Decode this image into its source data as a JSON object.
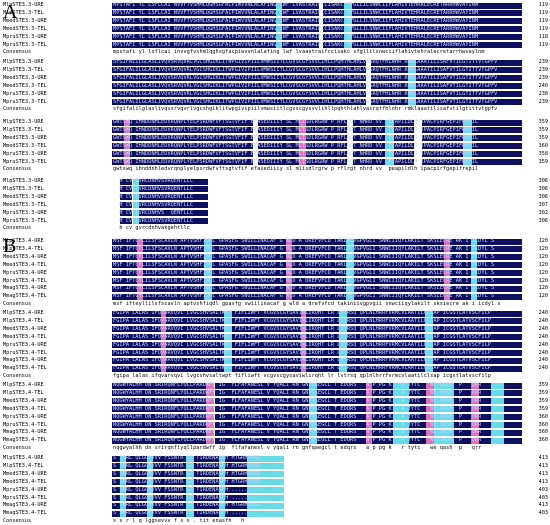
{
  "panels": [
    {
      "letter": "A",
      "blocks": [
        {
          "rows": [
            {
              "name": "MlpSTE3.3-URE",
              "end": "119",
              "seq": "MPSTAFI YL LSFLCAI NVVFTVSHMLQGHSGFACPIWVVNLALAFING LWF LVASTRAIFCCISAKC SFGLLILSNWCIIFLAHIVTEHRALECRETARRHWVAYINM"
            },
            {
              "name": "MlpSTE3.3-TEL",
              "end": "119",
              "seq": "MPSTAFI YL LSFLCAI NVVFTVSHMLQGHSGFACPIWVVNLALAFING LWF LVASTRAIFCCISAKC SFGLLILSNWCIIFLAHIVTEHRALECRETARRHWVAYINM"
            },
            {
              "name": "MmedSTE3.3-URE",
              "end": "119",
              "seq": "MPSTAFI YL LSFLCAI NVVFTVSHMLQGHSGFACPIWVVNLALAFING LWF LVASTRAIFCCISAKC SFGLLILSNWCIIFLAHIVTEHRALECRETARRHWVAYINM"
            },
            {
              "name": "MmedSTE3.3-TEL",
              "end": "119",
              "seq": "MPSTAFI YL LSFLCAI NVVFTVSHMLQGHSGFACPIWVVNLALAFING LWF LVASTRAIFCCISAKC SFGLLILSNWCIIFLAHIVTEHRALECRETARRHWVAYINM"
            },
            {
              "name": "MpruSTE3.3-URE",
              "end": "118",
              "seq": "MPSTAFI YL LSFLCAI NVVFTVSHMLQGHSGFACPIWVVNLALAFING LWF LVASTRAIFCCISAKC SFGLLILSNWCIIFLAHIVTEHRALECRETARRHWVAYINM"
            },
            {
              "name": "MpruSTE3.3-TEL",
              "end": "119",
              "seq": "MPSTAFI YL LSFLCAI NVVFTVSHMLQGHSGFACPIWVVNLALAFING LWF LVASTRAIFCCISAKC SFGLLILSNWCIIFLAHIVTEHRALECRETARRHWVAYINM"
            }
          ],
          "consensus": {
            "name": "Consensus",
            "seq": "mpstafi yl lsflcai invvgfvshmlqghsgfacpiwvvnlalafing lwf lvaastraifccisakc sfgllilsnwciiflahivtehralecretarrhwvaylnm"
          }
        },
        {
          "rows": [
            {
              "name": "MlpSTE3.3-URE",
              "end": "239",
              "seq": "SFGIFALILGLASLIVQVSRVQVRLVGCSHGIKLITWPGIVIPIILVMWSIITLCGVSCGYSVVLIHLLPQHTHLAHLVASRQTFHLNHR RMKLAAATILISAFVTILGTITTVTGPFV"
            },
            {
              "name": "MlpSTE3.3-TEL",
              "end": "239",
              "seq": "SFGIFALILGLASLIVQVSRVQVRLVGCSHGIKLITWPGIVIPIILVMWSIITLCGVSCGYSVVLIHLLPQHTHLAHLVASRQTFHLNHR RMKLAAATILISAFVTILGTITTVTGPFV"
            },
            {
              "name": "MmedSTE3.3-URE",
              "end": "239",
              "seq": "SFGIFALILGLASLIVQVSRVQVRLVGCSHGIKLITWPGIVIPIILVMWSIITLCGVSCGYSVVLIHLLPQHTHLAHLVASRQTFHLNHR RMKLAAATILISAFVTILGTITTVTGPFV"
            },
            {
              "name": "MmedSTE3.3-TEL",
              "end": "240",
              "seq": "SFGIFALILGLASLIVQVSRVQVRLVGCSHGIKLITWPGIVIPIILVMWSIITLCGVSCGYSVVLIHLLPQHTHLAHLVASRQTFHLNHR RMKLAAATILISAFVTILGTITTVTGPFV"
            },
            {
              "name": "MpruSTE3.3-URE",
              "end": "238",
              "seq": "SFGIFALILGLASLIVQVSRVQVRLVGCSHGIKLITWPGIVIPIILVMWSIITLCGVSCGYSVVLIHLLPQHTHLAHLVASRQTFHLNHR RMKLAAATILISAFVTILGTITTVTGPFV"
            },
            {
              "name": "MpruSTE3.3-TEL",
              "end": "239",
              "seq": "SFGIFALILGLASLIVQVSRVQVRLVGCSHGIKLITWPGIVIPIILVMWSIITLCGVSCGYSVVLIHLLPQHTHLAHLVASRQTFHLNHR RMKLAAATILISAFVTILGTITTVTGPFV"
            }
          ],
          "consensus": {
            "name": "Consensus",
            "seq": "sfgifalilglaslivqvsrvqvrlvgcshgiklitwpgivipiilvmwsiitlcgvscgysvvlihllpqhthlahlvasrqtfhlnhr rmklaaatilisafvtilgtittvtgpfv"
          }
        },
        {
          "rows": [
            {
              "name": "MlpSTE3.3-URE",
              "end": "359",
              "seq": "GWTSWQ IHNDDNHLEDVRQNPLYELPSRDWFVFTSGTVFIF EFASEDIIIY SL MLISDLRGRW P RFLRGT NHRD VV  PEAPILDLH IPACPIRFGEPIFREPIL"
            },
            {
              "name": "MlpSTE3.3-TEL",
              "end": "359",
              "seq": "GWTSWQ IHNDDNHLEDVRQNPLYELPSRDWFVFTSGTVFIF EFASEDIIIY SL MLISDLRGRW P RFLRGT NHRD VV  PEAPILDLH IPACPIRFGEPIFREPIL"
            },
            {
              "name": "MmedSTE3.3-URE",
              "end": "359",
              "seq": "GWTSWQ IHNDDNHLEDVRQNPLYELPSRDWFVFTSGTVFIF EFASEDIIIY SL MLISDLRGRW P RFLRGT NHRD VV  PEAPILDLH IPACPIRFGEPIFREPIL"
            },
            {
              "name": "MmedSTE3.3-TEL",
              "end": "360",
              "seq": "GWTSWQ IHNDDNHLEDVRQNPLYELPSRDWFVFTSGTVFIF EFASEDIIIY SL MLISDLRGRW P RFLRGT NHRD VV  PEAPILDLH IPACPIRFGEPIFREPIL"
            },
            {
              "name": "MpruSTE3.3-URE",
              "end": "358",
              "seq": "GWTSWQ IHNDDNHLEDVRQNPLYELPSRDWFVFTSGTVFIF EFASEDIIIY SL MLISDLRGRW P RFLRGT NHRD VV  PEAPILDLH IPACPIRFGEPIFREPIL"
            },
            {
              "name": "MpruSTE3.3-TEL",
              "end": "359",
              "seq": "GWTSWQ IHNDDNHLEDVRQNPLYELPSRDWFVFTSGTVFIF EFASEDIIIY SL MLISDLRGRW P RFLRGT NHRD VV  PEAPILDLH IPACPIRFGEPIFREPIL"
            }
          ],
          "consensus": {
            "name": "Consensus",
            "seq": "gwtswq ihnddnhledvrqnplyelpsrdwfvftsgtvfif efasediiiy sl mlisdlrgrw p rflrgt nhrd vv  peapildlh ipacpirfgepifrepil"
          }
        },
        {
          "rows": [
            {
              "name": "MlpSTE3.3-URE",
              "end": "306",
              "seq": "  H CV GVRCDNHVSVRQENTLLC"
            },
            {
              "name": "MlpSTE3.3-TEL",
              "end": "306",
              "seq": "  H CV GVRCDNHVSVRQENTLLC"
            },
            {
              "name": "MmedSTE3.3-URE",
              "end": "306",
              "seq": "  H CV GVRCDNHVSVRQENTLLC"
            },
            {
              "name": "MmedSTE3.3-TEL",
              "end": "307",
              "seq": "  H CV GVRCDNHVSVRQENTLLC"
            },
            {
              "name": "MpruSTE3.3-URE",
              "end": "302",
              "seq": "  H CV GVRCDNHVS  QENTLLC"
            },
            {
              "name": "MpruSTE3.3-TEL",
              "end": "306",
              "seq": "  H CV GVRCDNHVSVRQENTLLC"
            }
          ],
          "consensus": {
            "name": "Consensus",
            "seq": "  h cv gvrcdnhvakgehtllc"
          }
        }
      ]
    },
    {
      "letter": "B",
      "blocks": [
        {
          "rows": [
            {
              "name": "MlpSTE3.4-URE",
              "end": "120",
              "seq": "MSF IFTCYLILSFSCAVLN APTVSHFIQDL GPASFG SWILLINACAF G WLD A DREFVFCD TAKLNLVGPVGLI SNWCIIQYLAKILT SKSLECRE AK I ICDYL S"
            },
            {
              "name": "MlpSTE3.4-TEL",
              "end": "120",
              "seq": "MSF IFTCYLILSFSCAVLN APTVSHFIQDL GPASFG SWILLINACAF G WLD A DREFVFCD TAKLNLVGPVGLI SNWCIIQYLAKILT SKSLECRE AK I ICDYL S"
            },
            {
              "name": "MmedSTE3.4-URE",
              "end": "120",
              "seq": "MSF IFTCYLILSFSCAVLN APTVSHFIQDL GPASFG SWILLINACAF G WLD A DREFVFCD TAKLNLVGPVGLI SNWCIIQYLAKILT SKSLECRE AK I ICDYL S"
            },
            {
              "name": "MmedSTE3.4-TEL",
              "end": "120",
              "seq": "MSF IFTCYLILSFSCAVLN APTVSHFIQDL GPASFG SWILLINACAF G WLD A DREFVFCD TAKLNLVGPVGLI SNWCIIQYLAKILT SKSLECRE AK I ICDYL S"
            },
            {
              "name": "MpruSTE3.4-URE",
              "end": "120",
              "seq": "MSF IFTCYLILSFSCAVLN APTVSHFIQDL GPASFG SWILLINACAF G WLD A DREFVFCD TAKLNLVGPVGLI SNWCIIQYLAKILT SKSLECRE AK I ICDYL S"
            },
            {
              "name": "MpruSTE3.4-TEL",
              "end": "120",
              "seq": "MSF IFTCYLILSFSCAVLN APTVSHFIQDL GPASFG SWILLINACAF G WLD A DREFVFCD TAKLNLVGPVGLI SNWCIIQYLAKILT SKSLECRE AK I ICDYL S"
            },
            {
              "name": "MmagSTE3.4-URE",
              "end": "120",
              "seq": "MSF IFTCYLILSFSCAVLN APTVSHFIQDL GPASFG SWILLINACAF G WLD A DREFVFCD TAKLNLVGPVGLI SNWCIIQYLAKILT SKSLECRE AK I ICDYL S"
            },
            {
              "name": "MmagSTE3.4-TEL",
              "end": "120",
              "seq": "MSF IFTCYLILSFSCAVLN APTVSHFIQDL GPASFG SWILLINACAF G WLD A DREFVFCD TAKLNLVGPVGLI SNWCIIQYLAKILT SKSLECRE AK I ICDYL S"
            }
          ],
          "consensus": {
            "name": "Consensus",
            "seq": "msf ifteyllilsfscavln aptvshfiqdl gpasfg swiilinacaf g wld a drefvfcd takiniivgpvgii snwciiqylakilt sksiecre ak i icdyl s"
          }
        },
        {
          "rows": [
            {
              "name": "MlpSTE3.4-URE",
              "end": "240",
              "seq": "FGIPA LALAS IFQVARVQVI LVGCSHVSALTWPT FIFLIWFT VCGVSCGYSAVIWLIRQHT LR LVTRSQ QPLNLHRRFVRMCVLAATILCLSAP ICGSTLATVSCFILP"
            },
            {
              "name": "MlpSTE3.4-TEL",
              "end": "240",
              "seq": "FGIPA LALAS IFQVARVQVI LVGCSHVSALTWPT FIFLIWFT VCGVSCGYSAVIWLIRQHT LR LVTRSQ QPLNLHRRFVRMCVLAATILCLSAP ICGSTLATVSCFILP"
            },
            {
              "name": "MmedSTE3.4-URE",
              "end": "240",
              "seq": "FGIPA LALAS IFQVARVQVI LVGCSHVSALTWPT FIFLIWFT VCGVSCGYSAVIWLIRQHT LR LVTRSQ QPLNLHRRFVRMCVLAATILCLSAP ICGSTLATVSCFILP"
            },
            {
              "name": "MmedSTE3.4-TEL",
              "end": "240",
              "seq": "FGIPA LALAS IFQVARVQVI LVGCSHVSALTWPT FIFLIWFT VCGVSCGYSAVIWLIRQHT LR LVTRSQ QPLNLHRRFVRMCVLAATILCLSAP ICGSTLATVSCFILP"
            },
            {
              "name": "MpruSTE3.4-URE",
              "end": "240",
              "seq": "FGIPA LALAS IFQVARVQVI LVGCSHVSALTWPT FIFLIWFT VCGVSCGYSAVIWLIRQHT LR LVTRSQ QPLNLHRRFVRMCVLAATILCLSAP ICGSTLATVSCFILP"
            },
            {
              "name": "MpruSTE3.4-TEL",
              "end": "240",
              "seq": "FGIPA LALAS IFQVARVQVI LVGCSHVSALTWPT FIFLIWFT VCGVSCGYSAVIWLIRQHT LR LVTRSQ QPLNLHRRFVRMCVLAATILCLSAP ICGSTLATVSCFILP"
            },
            {
              "name": "MmagSTE3.4-URE",
              "end": "240",
              "seq": "FGIPA LALAS IFQVARVQVI LVGCSHVSALTWPT FIFLIWFT VCGVSCGYSAVIWLIRQHT LR LVTRSQ QPLNLHRRFVRMCVLAATILCLSAP ICGSTLATVSCFILP"
            },
            {
              "name": "MmagSTE3.4-TEL",
              "end": "240",
              "seq": "FGIPA LALAS IFQVARVQVI LVGCSHVSALTWPT FIFLIWFT VCGVSCGYSAVIWLIRQHT LR LVTRSQ QPLNLHRRFVRMCVLAATILCLSAP ICGSTLATVSCFILP"
            }
          ],
          "consensus": {
            "name": "Consensus",
            "seq": "fgipa lalas ifqvarvqvi lvgcshvsaltwpt fifliwft vcgvscgysaviwlirqht lr lvtrsq qplnlhrrfvrmcvlaatilclsap icgstlatvscfilp"
          }
        },
        {
          "rows": [
            {
              "name": "MlpSTE3.4-URE",
              "end": "359",
              "seq": "NQGWYALHH DN SRIRQNFLYQLLPARDWFF IG  FLFAFANESL V YQALI RN GNFQAEGCL T EDQRS   A P PG K   R TYTC   WE QASH  P   QRR"
            },
            {
              "name": "MlpSTE3.4-TEL",
              "end": "359",
              "seq": "NQGWYALHH DN SRIRQNFLYQLLPARDWFF IG  FLFAFANESL V YQALI RN GNFQAEGCL T EDQRS   A P PG K   R TYTC   WE QASH  P   QRR"
            },
            {
              "name": "MmedSTE3.4-URE",
              "end": "359",
              "seq": "NQGWYALHH DN SRIRQNFLYQLLPARDWFF IG  FLFAFANESL V YQALI RN GNFQAEGCL T EDQRS   A P PG K   R TYTC   WE QASH  P   QRR"
            },
            {
              "name": "MmedSTE3.4-TEL",
              "end": "359",
              "seq": "NQGWYALHH DN SRIRQNFLYQLLPARDWFF IG  FLFAFANESL V YQALI RN GNFQAEGCL T EDQRS   A P PG K   R TYTC   WE QASH  P   QRR"
            },
            {
              "name": "MpruSTE3.4-URE",
              "end": "360",
              "seq": "NQGWYALHH DN SRIRQNFLYQLLPARDWFF IG  FLFAFANESL V YQALI RN GNFQAEGCL T EDQRS   A P PG K   R TYTC   WE QASH  P   QRR"
            },
            {
              "name": "MpruSTE3.4-TEL",
              "end": "360",
              "seq": "NQGWYALHH DN SRIRQNFLYQLLPARDWFF IG  FLFAFANESL V YQALI RN GNFQAEGCL T EDQRS   A P PG K   R TYTC   WE QASH  P   QRR"
            },
            {
              "name": "MmagSTE3.4-URE",
              "end": "360",
              "seq": "NQGWYALHH DN SRIRQNFLYQLLPARDWFF IG  FLFAFANESL V YQALI RN GNFQAEGCL T EDQRS   A P PG K   R TYTC   WE QASH  P   QRR"
            },
            {
              "name": "MmagSTE3.4-TEL",
              "end": "360",
              "seq": "NQGWYALHH DN SRIRQNFLYQLLPARDWFF IG  FLFAFANESL V YQALI RN GNFQAEGCL T EDQRS   A P PG K   R TYTC   WE QASH  P   QRR"
            }
          ],
          "consensus": {
            "name": "Consensus",
            "seq": "nqgwyalhh dn srirqnflyqllpardwff ig  flfafanesl v yqali rn gnfqaegcl t edqrs   a p pg k   r tytc   we qash  p   qrr"
          }
        },
        {
          "rows": [
            {
              "name": "MlpSTE3.4-URE",
              "end": "413",
              "seq": "S SRRL QLGGEVVV FSSNTR LS TIRDENASFH HTGRHVERI"
            },
            {
              "name": "MlpSTE3.4-TEL",
              "end": "413",
              "seq": "S SRRL QLGGEVVV FSSNTR LS TIRDENASFH HTGRHVERI"
            },
            {
              "name": "MmedSTE3.4-URE",
              "end": "413",
              "seq": "S SRRL QLGGEVVV FSSNTR LS TIRDENASFH HTGRHVERI"
            },
            {
              "name": "MmedSTE3.4-TEL",
              "end": "413",
              "seq": "S SRRL QLGGEVVV FSSNTR LS TIRDENASFH HTGRHVERI"
            },
            {
              "name": "MpruSTE3.4-URE",
              "end": "403",
              "seq": "S SRRL QLGGEVVV FSSNTR LS TIRDENASFH ........."
            },
            {
              "name": "MpruSTE3.4-TEL",
              "end": "403",
              "seq": "S SRRL QLGGEVVV FSSNTR LS TIRDENASFH ........."
            },
            {
              "name": "MmagSTE3.4-URE",
              "end": "413",
              "seq": "S SRRL QLGGEVVV FSSNTR LS TIRDENASFH HTGRHVERI"
            },
            {
              "name": "MmagSTE3.4-TEL",
              "end": "403",
              "seq": "S SRRL QLGGEVVV FSSNTR LS TIRDENASFH ........."
            }
          ],
          "consensus": {
            "name": "Consensus",
            "seq": "s s r l q lggsevvv f s s . tit enasfh   h"
          }
        }
      ]
    }
  ]
}
